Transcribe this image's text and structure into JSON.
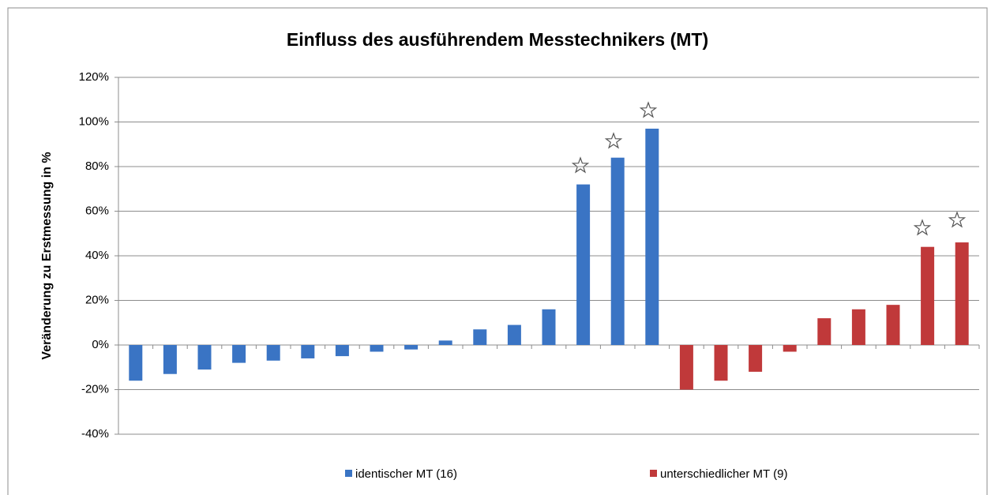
{
  "chart_data": {
    "type": "bar",
    "title": "Einfluss des ausführendem Messtechnikers (MT)",
    "y_label": "Veränderung zu Erstmessung in %",
    "categories": [
      null,
      null,
      null,
      null,
      null,
      null,
      null,
      null,
      null,
      null,
      null,
      null,
      null,
      null,
      null,
      null,
      null,
      null,
      null,
      null,
      null,
      null,
      null,
      null,
      null
    ],
    "series": [
      {
        "name": "identischer MT (16)",
        "color": "#3a74c4",
        "values": [
          -16,
          -13,
          -11,
          -8,
          -7,
          -6,
          -5,
          -3,
          -2,
          2,
          7,
          9,
          16,
          72,
          84,
          97,
          null,
          null,
          null,
          null,
          null,
          null,
          null,
          null,
          null
        ]
      },
      {
        "name": "unterschiedlicher MT (9)",
        "color": "#c0393a",
        "values": [
          null,
          null,
          null,
          null,
          null,
          null,
          null,
          null,
          null,
          null,
          null,
          null,
          null,
          null,
          null,
          null,
          -20,
          -16,
          -12,
          -3,
          12,
          16,
          18,
          44,
          46
        ]
      }
    ],
    "ylim": [
      -40,
      120
    ],
    "yticks": [
      {
        "value": -40,
        "label": "-40%"
      },
      {
        "value": -20,
        "label": "-20%"
      },
      {
        "value": 0,
        "label": "0%"
      },
      {
        "value": 20,
        "label": "20%"
      },
      {
        "value": 40,
        "label": "40%"
      },
      {
        "value": 60,
        "label": "60%"
      },
      {
        "value": 80,
        "label": "80%"
      },
      {
        "value": 100,
        "label": "100%"
      },
      {
        "value": 120,
        "label": "120%"
      }
    ],
    "grid": true,
    "legend": "bottom"
  }
}
